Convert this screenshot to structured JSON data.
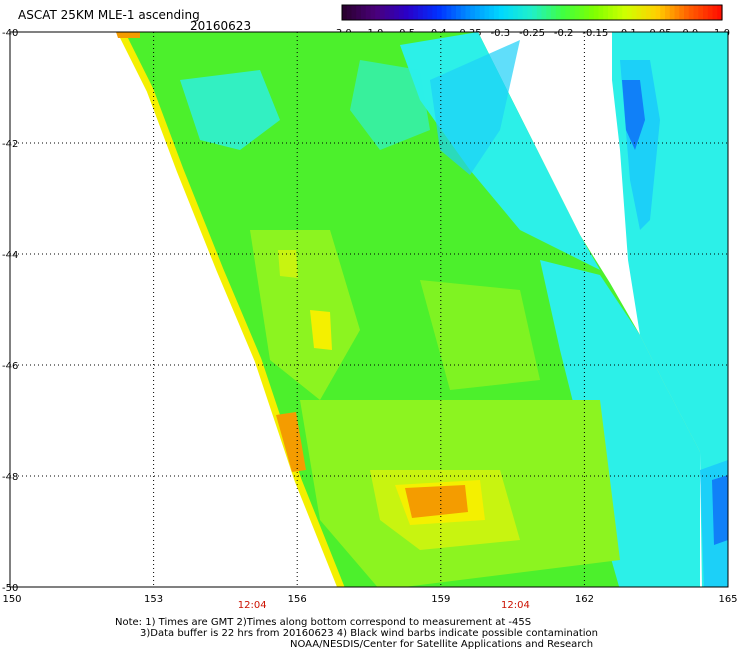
{
  "header": {
    "title": "ASCAT 25KM MLE-1 ascending",
    "date": "20160623"
  },
  "colorbar": {
    "labels": [
      "-3.0",
      "-1.0",
      "-0.5",
      "-0.4",
      "-0.35",
      "-0.3",
      "-0.25",
      "-0.2",
      "-0.15",
      "-0.1",
      "-0.05",
      "0.0",
      "1.0"
    ],
    "colors": [
      "#2a0030",
      "#4a007a",
      "#2a00c8",
      "#0030ff",
      "#0090ff",
      "#00d8ff",
      "#20f0c8",
      "#40ff40",
      "#80ff00",
      "#d0ff00",
      "#ffd000",
      "#ff6000",
      "#ff1000"
    ]
  },
  "map": {
    "lat_labels": [
      "-40",
      "-42",
      "-44",
      "-46",
      "-48",
      "-50"
    ],
    "lon_labels": [
      "150",
      "153",
      "156",
      "159",
      "162",
      "165"
    ],
    "lat_range": [
      -50,
      -40
    ],
    "lon_range": [
      150,
      165
    ],
    "time_labels": [
      {
        "lon": 156,
        "text": "12:04"
      },
      {
        "lon": 161.5,
        "text": "12:04"
      }
    ],
    "colors": {
      "green": "#4cf02c",
      "light_green": "#8cf420",
      "yellow_green": "#c8f410",
      "yellow": "#f4f000",
      "orange": "#f49c00",
      "cyan": "#2cf0e8",
      "light_blue": "#1cd0f8",
      "blue": "#1080f8",
      "time_red": "#cc1100"
    }
  },
  "notes": {
    "line1": "Note: 1) Times are GMT 2)Times along bottom correspond to measurement at -45S",
    "line2": "3)Data buffer is 22 hrs from 20160623 4) Black wind barbs indicate possible contamination",
    "line3": "NOAA/NESDIS/Center for Satellite Applications and Research"
  }
}
